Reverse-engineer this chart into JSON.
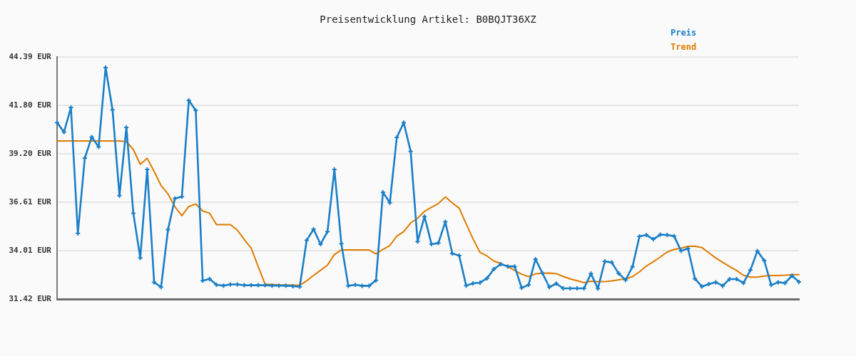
{
  "chart_data": {
    "type": "line",
    "title": "Preisentwicklung Artikel: B0BQJT36XZ",
    "categories": [
      null,
      null,
      null,
      null,
      null,
      null,
      null,
      null,
      null,
      null,
      null,
      null,
      null,
      null,
      null,
      null,
      null,
      null,
      null,
      null,
      null,
      null,
      null,
      null,
      null,
      null,
      null,
      null,
      null,
      null,
      null,
      null,
      null,
      null,
      null,
      null,
      null,
      null,
      null,
      null,
      null,
      null,
      null,
      null,
      null,
      null,
      null,
      null,
      null,
      null,
      null,
      null,
      null,
      null,
      null,
      null,
      null,
      null,
      null,
      null,
      null,
      null,
      null,
      null,
      null,
      null,
      null,
      null,
      null,
      null,
      null,
      null,
      null,
      null,
      null,
      null,
      null,
      null,
      null,
      null,
      null,
      null,
      null,
      null,
      null,
      null,
      null,
      null,
      null,
      null,
      null,
      null,
      null,
      null,
      null,
      null,
      null,
      null,
      null,
      null,
      null,
      null,
      null,
      null,
      null,
      null,
      null,
      null
    ],
    "series": [
      {
        "name": "Preis",
        "color": "#1a7fc8",
        "values": [
          40.87,
          40.37,
          41.68,
          34.94,
          38.97,
          40.1,
          39.57,
          43.82,
          41.56,
          36.96,
          40.61,
          36.02,
          33.62,
          38.36,
          32.32,
          32.06,
          35.14,
          36.81,
          36.9,
          42.06,
          41.53,
          32.4,
          32.5,
          32.18,
          32.14,
          32.2,
          32.2,
          32.16,
          32.16,
          32.16,
          32.16,
          32.14,
          32.14,
          32.14,
          32.11,
          32.08,
          34.57,
          35.16,
          34.36,
          35.03,
          38.36,
          34.39,
          32.13,
          32.18,
          32.13,
          32.13,
          32.42,
          37.14,
          36.58,
          40.08,
          40.87,
          39.33,
          34.5,
          35.84,
          34.36,
          34.42,
          35.56,
          33.86,
          33.75,
          32.14,
          32.26,
          32.3,
          32.53,
          33.02,
          33.29,
          33.17,
          33.17,
          32.02,
          32.18,
          33.56,
          32.81,
          32.06,
          32.25,
          31.99,
          31.99,
          31.99,
          31.99,
          32.78,
          31.98,
          33.44,
          33.38,
          32.79,
          32.44,
          33.16,
          34.78,
          34.85,
          34.62,
          34.87,
          34.85,
          34.79,
          34.0,
          34.13,
          32.51,
          32.09,
          32.22,
          32.32,
          32.13,
          32.49,
          32.49,
          32.28,
          32.97,
          33.99,
          33.48,
          32.17,
          32.32,
          32.28,
          32.67,
          32.34
        ]
      },
      {
        "name": "Trend",
        "color": "#e07b00",
        "marker": "none",
        "values": [
          39.89,
          39.89,
          39.89,
          39.89,
          39.89,
          39.89,
          39.89,
          39.89,
          39.89,
          39.89,
          39.85,
          39.43,
          38.64,
          38.96,
          38.26,
          37.5,
          37.05,
          36.36,
          35.89,
          36.38,
          36.51,
          36.14,
          36.02,
          35.41,
          35.41,
          35.41,
          35.11,
          34.61,
          34.14,
          33.17,
          32.22,
          32.2,
          32.18,
          32.17,
          32.16,
          32.16,
          32.39,
          32.69,
          32.96,
          33.23,
          33.81,
          34.05,
          34.05,
          34.05,
          34.05,
          34.05,
          33.84,
          34.08,
          34.29,
          34.79,
          35.03,
          35.5,
          35.75,
          36.12,
          36.34,
          36.54,
          36.89,
          36.57,
          36.29,
          35.45,
          34.64,
          33.92,
          33.73,
          33.45,
          33.33,
          33.16,
          32.95,
          32.75,
          32.62,
          32.77,
          32.8,
          32.81,
          32.78,
          32.63,
          32.5,
          32.4,
          32.3,
          32.37,
          32.35,
          32.35,
          32.39,
          32.45,
          32.5,
          32.62,
          32.88,
          33.19,
          33.42,
          33.67,
          33.94,
          34.08,
          34.15,
          34.24,
          34.25,
          34.18,
          33.9,
          33.62,
          33.39,
          33.16,
          32.95,
          32.69,
          32.59,
          32.59,
          32.65,
          32.68,
          32.68,
          32.7,
          32.73,
          32.73
        ]
      }
    ],
    "ylim": [
      31.42,
      44.39
    ],
    "yticks": [
      {
        "value": 31.42,
        "label": "31.42 EUR"
      },
      {
        "value": 34.01,
        "label": "34.01 EUR"
      },
      {
        "value": 36.61,
        "label": "36.61 EUR"
      },
      {
        "value": 39.2,
        "label": "39.20 EUR"
      },
      {
        "value": 41.8,
        "label": "41.80 EUR"
      },
      {
        "value": 44.39,
        "label": "44.39 EUR"
      }
    ],
    "grid": "y",
    "legend": "top right",
    "marker": "cross",
    "line_style": "solid",
    "tick_labels": "y"
  }
}
